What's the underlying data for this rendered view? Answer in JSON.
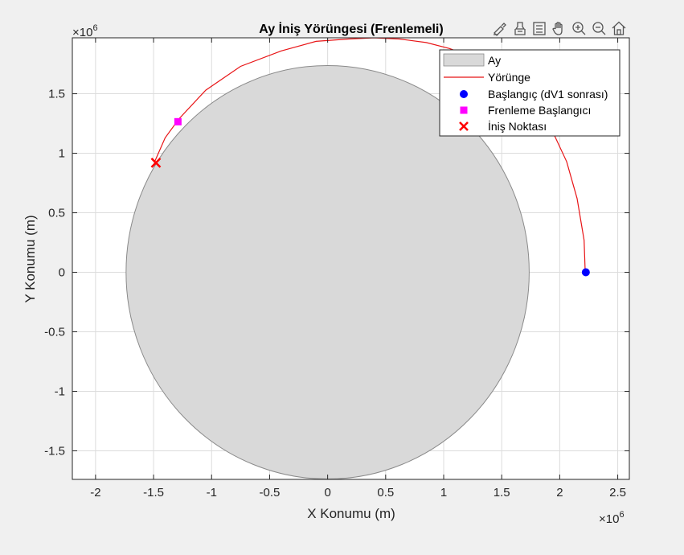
{
  "chart_data": {
    "type": "scatter",
    "title": "Ay İniş Yörüngesi (Frenlemeli)",
    "xlabel": "X Konumu (m)",
    "ylabel": "Y Konumu (m)",
    "x_exponent": "×10",
    "x_exponent_power": "6",
    "y_exponent": "×10",
    "y_exponent_power": "6",
    "xlim": [
      -2.2,
      2.6
    ],
    "ylim": [
      -1.74,
      1.97
    ],
    "scale": 1000000,
    "xticks": [
      -2,
      -1.5,
      -1,
      -0.5,
      0,
      0.5,
      1,
      1.5,
      2,
      2.5
    ],
    "xtick_labels": [
      "-2",
      "-1.5",
      "-1",
      "-0.5",
      "0",
      "0.5",
      "1",
      "1.5",
      "2",
      "2.5"
    ],
    "yticks": [
      -1.5,
      -1,
      -0.5,
      0,
      0.5,
      1,
      1.5
    ],
    "ytick_labels": [
      "-1.5",
      "-1",
      "-0.5",
      "0",
      "0.5",
      "1",
      "1.5"
    ],
    "grid": true,
    "legend_position": "top-right",
    "moon": {
      "name": "Ay",
      "center": [
        0,
        0
      ],
      "radius": 1.737,
      "color": "#d9d9d9"
    },
    "trajectory": {
      "name": "Yörünge",
      "color": "#e81416",
      "x": [
        2.22,
        2.21,
        2.15,
        2.06,
        1.94,
        1.8,
        1.63,
        1.45,
        1.25,
        1.05,
        0.85,
        0.62,
        0.4,
        0.18,
        -0.1,
        -0.4,
        -0.75,
        -1.05,
        -1.28,
        -1.4,
        -1.49
      ],
      "y": [
        0,
        0.27,
        0.62,
        0.93,
        1.18,
        1.4,
        1.58,
        1.71,
        1.81,
        1.88,
        1.93,
        1.96,
        1.97,
        1.96,
        1.94,
        1.86,
        1.73,
        1.53,
        1.29,
        1.13,
        0.93
      ]
    },
    "points": [
      {
        "name": "Başlangıç (dV1 sonrası)",
        "marker": "circle",
        "color": "#0000ff",
        "x": 2.225,
        "y": 0
      },
      {
        "name": "Frenleme Başlangıcı",
        "marker": "square",
        "color": "#ff00ff",
        "x": -1.29,
        "y": 1.265
      },
      {
        "name": "İniş Noktası",
        "marker": "x",
        "color": "#ff0000",
        "x": -1.48,
        "y": 0.92
      }
    ],
    "legend": [
      "Ay",
      "Yörünge",
      "Başlangıç (dV1 sonrası)",
      "Frenleme Başlangıcı",
      "İniş Noktası"
    ]
  },
  "toolbar": {
    "icons": [
      "brush-icon",
      "datatip-icon",
      "legend-icon",
      "pan-icon",
      "zoom-in-icon",
      "zoom-out-icon",
      "home-icon"
    ]
  }
}
